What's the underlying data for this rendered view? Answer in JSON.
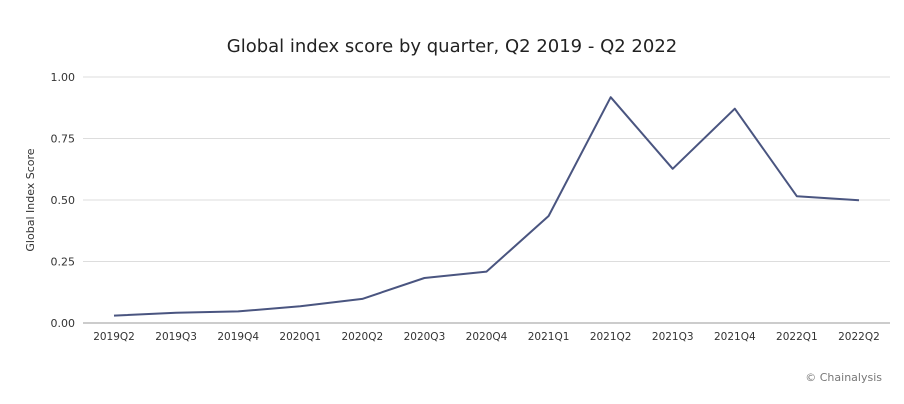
{
  "chart_data": {
    "type": "line",
    "title": "Global index score by quarter, Q2 2019 - Q2 2022",
    "xlabel": "",
    "ylabel": "Global Index Score",
    "categories": [
      "2019Q2",
      "2019Q3",
      "2019Q4",
      "2020Q1",
      "2020Q2",
      "2020Q3",
      "2020Q4",
      "2021Q1",
      "2021Q2",
      "2021Q3",
      "2021Q4",
      "2022Q1",
      "2022Q2"
    ],
    "series": [
      {
        "values": [
          0.03,
          0.042,
          0.047,
          0.068,
          0.098,
          0.183,
          0.209,
          0.435,
          0.918,
          0.627,
          0.871,
          0.515,
          0.499
        ]
      }
    ],
    "ylim": [
      0,
      1.0
    ],
    "yticks": [
      "0.00",
      "0.25",
      "0.50",
      "0.75",
      "1.00"
    ],
    "grid": true,
    "line_color": "#4a5580"
  },
  "credit": "© Chainalysis"
}
